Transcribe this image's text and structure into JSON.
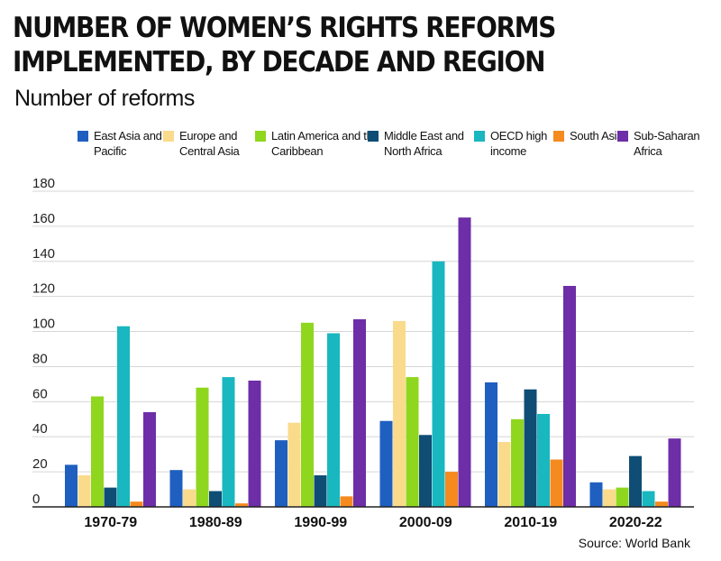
{
  "chart_data": {
    "type": "bar",
    "title": "NUMBER OF WOMEN’S RIGHTS REFORMS IMPLEMENTED, BY DECADE AND REGION",
    "subtitle": "Number of reforms",
    "source": "Source: World Bank",
    "categories": [
      "1970-79",
      "1980-89",
      "1990-99",
      "2000-09",
      "2010-19",
      "2020-22"
    ],
    "ylim": [
      0,
      180
    ],
    "yticks": [
      0,
      20,
      40,
      60,
      80,
      100,
      120,
      140,
      160,
      180
    ],
    "grid": true,
    "legend_position": "top",
    "series": [
      {
        "name": "East Asia and Pacific",
        "color": "#1f5fc0",
        "values": [
          24,
          21,
          38,
          49,
          71,
          14
        ]
      },
      {
        "name": "Europe and Central Asia",
        "color": "#fadb8c",
        "values": [
          18,
          10,
          48,
          106,
          37,
          10
        ]
      },
      {
        "name": "Latin America and the Caribbean",
        "color": "#8fd61e",
        "values": [
          63,
          68,
          105,
          74,
          50,
          11
        ]
      },
      {
        "name": "Middle East and North Africa",
        "color": "#0f4d75",
        "values": [
          11,
          9,
          18,
          41,
          67,
          29
        ]
      },
      {
        "name": "OECD high income",
        "color": "#19b7bf",
        "values": [
          103,
          74,
          99,
          140,
          53,
          9
        ]
      },
      {
        "name": "South Asia",
        "color": "#f58a1f",
        "values": [
          3,
          2,
          6,
          20,
          27,
          3
        ]
      },
      {
        "name": "Sub-Saharan Africa",
        "color": "#6d2ea7",
        "values": [
          54,
          72,
          107,
          165,
          126,
          39
        ]
      }
    ]
  }
}
